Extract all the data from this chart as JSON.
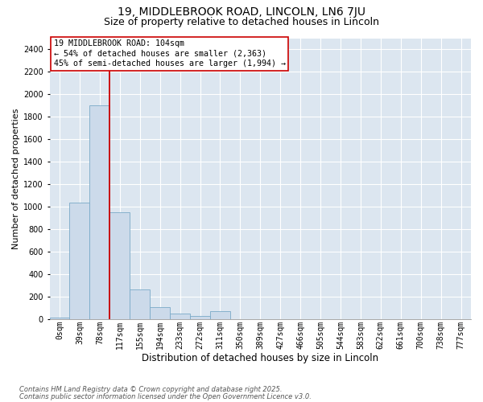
{
  "title1": "19, MIDDLEBROOK ROAD, LINCOLN, LN6 7JU",
  "title2": "Size of property relative to detached houses in Lincoln",
  "xlabel": "Distribution of detached houses by size in Lincoln",
  "ylabel": "Number of detached properties",
  "bar_labels": [
    "0sqm",
    "39sqm",
    "78sqm",
    "117sqm",
    "155sqm",
    "194sqm",
    "233sqm",
    "272sqm",
    "311sqm",
    "350sqm",
    "389sqm",
    "427sqm",
    "466sqm",
    "505sqm",
    "544sqm",
    "583sqm",
    "622sqm",
    "661sqm",
    "700sqm",
    "738sqm",
    "777sqm"
  ],
  "bar_values": [
    20,
    1040,
    1900,
    950,
    270,
    110,
    50,
    30,
    75,
    0,
    0,
    0,
    0,
    0,
    0,
    0,
    0,
    0,
    0,
    0,
    0
  ],
  "bar_color": "#ccdaea",
  "bar_edgecolor": "#7aaac8",
  "background_color": "#dce6f0",
  "vline_x": 2.5,
  "vline_color": "#cc0000",
  "annotation_text": "19 MIDDLEBROOK ROAD: 104sqm\n← 54% of detached houses are smaller (2,363)\n45% of semi-detached houses are larger (1,994) →",
  "annotation_box_edgecolor": "#cc0000",
  "ylim": [
    0,
    2500
  ],
  "yticks": [
    0,
    200,
    400,
    600,
    800,
    1000,
    1200,
    1400,
    1600,
    1800,
    2000,
    2200,
    2400
  ],
  "title1_fontsize": 10,
  "title2_fontsize": 9,
  "annotation_fontsize": 7.2,
  "ylabel_fontsize": 8,
  "xlabel_fontsize": 8.5,
  "tick_fontsize": 7,
  "footer_fontsize": 6,
  "footer1": "Contains HM Land Registry data © Crown copyright and database right 2025.",
  "footer2": "Contains public sector information licensed under the Open Government Licence v3.0."
}
